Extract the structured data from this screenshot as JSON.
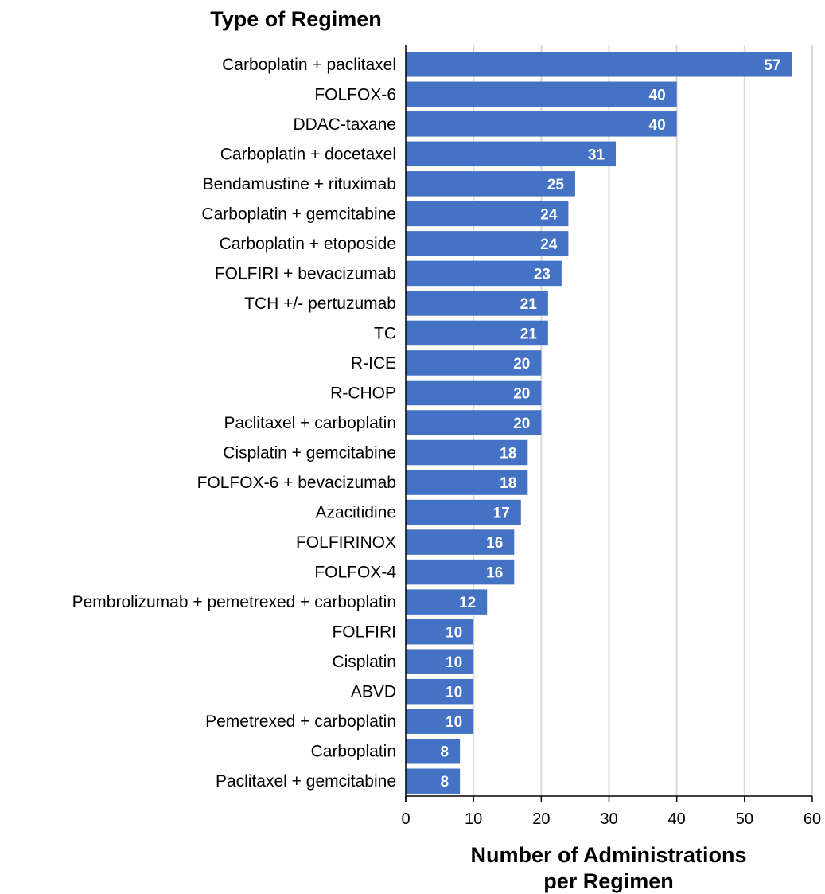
{
  "chart_data": {
    "type": "bar",
    "orientation": "horizontal",
    "ylabel": "Type of Regimen",
    "xlabel_lines": [
      "Number of Administrations",
      "per Regimen"
    ],
    "categories": [
      "Carboplatin + paclitaxel",
      "FOLFOX-6",
      "DDAC-taxane",
      "Carboplatin + docetaxel",
      "Bendamustine + rituximab",
      "Carboplatin + gemcitabine",
      "Carboplatin + etoposide",
      "FOLFIRI + bevacizumab",
      "TCH +/- pertuzumab",
      "TC",
      "R-ICE",
      "R-CHOP",
      "Paclitaxel + carboplatin",
      "Cisplatin + gemcitabine",
      "FOLFOX-6 + bevacizumab",
      "Azacitidine",
      "FOLFIRINOX",
      "FOLFOX-4",
      "Pembrolizumab + pemetrexed + carboplatin",
      "FOLFIRI",
      "Cisplatin",
      "ABVD",
      "Pemetrexed + carboplatin",
      "Carboplatin",
      "Paclitaxel + gemcitabine"
    ],
    "values": [
      57,
      40,
      40,
      31,
      25,
      24,
      24,
      23,
      21,
      21,
      20,
      20,
      20,
      18,
      18,
      17,
      16,
      16,
      12,
      10,
      10,
      10,
      10,
      8,
      8
    ],
    "xlim": [
      0,
      60
    ],
    "xticks": [
      0,
      10,
      20,
      30,
      40,
      50,
      60
    ],
    "grid": "vertical",
    "bar_color": "#4472c4",
    "grid_color": "#d9d9d9",
    "value_label_color": "#ffffff"
  }
}
